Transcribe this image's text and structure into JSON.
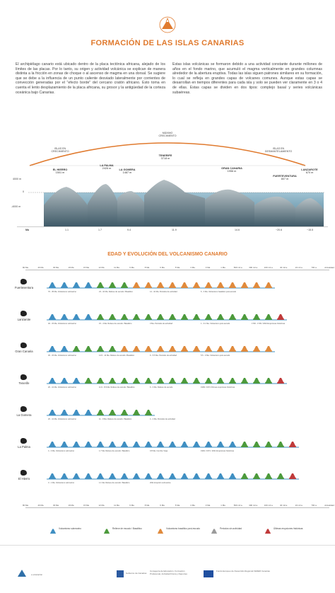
{
  "header": {
    "title": "FORMACIÓN DE LAS ISLAS CANARIAS"
  },
  "intro": {
    "left": "El archipiélago canario está ubicado dentro de la placa tectónica africana, alejado de los límites de las placas. Por lo tanto, su origen y actividad volcánica se explican de manera distinta a la fricción en zonas de choque o al ascenso de magma en una dorsal. Se sugiere que se debe a la influencia de un punto caliente desviado lateralmente por corrientes de convección generadas por el \"efecto borde\" del cercano cratón africano. Esto toma en cuenta el lento desplazamiento de la placa africana, su grosor y la antigüedad de la corteza oceánica bajo Canarias.",
    "right": "Estas islas volcánicas se formaron debido a una actividad constante durante millones de años en el fondo marino, que acumuló el magma verticalmente en grandes columnas alrededor de la abertura eruptiva. Todas las islas siguen patrones similares en su formación, lo cual se refleja en grandes capas de volcanes comunes. Aunque estas capas se desarrollan en tiempos diferentes para cada isla y solo se pueden ver claramente en 3 o 4 de ellas. Estas capas se dividen en dos tipos: complejo basal y series volcánicas subaéreas."
  },
  "arc": {
    "left": "ISLAS EN\nCRECIMIENTO",
    "top": "MÁXIMO\nCRECIMIENTO",
    "right": "ISLAS EN\nDESMANTELAMIENTO"
  },
  "islands": [
    {
      "name": "EL HIERRO",
      "height": "1501 m",
      "ma": "1.1"
    },
    {
      "name": "LA PALMA",
      "height": "2426 m",
      "ma": "1.7"
    },
    {
      "name": "LA GOMERA",
      "height": "1487 m",
      "ma": "9.4"
    },
    {
      "name": "TENERIFE",
      "height": "3718 m",
      "ma": "11.9"
    },
    {
      "name": "GRAN CANARIA",
      "height": "1956 m",
      "ma": "14.6"
    },
    {
      "name": "FUERTEVENTURA",
      "height": "807 m",
      "ma": "~20.6"
    },
    {
      "name": "LANZAROTE",
      "height": "670 m",
      "ma": "~15.5"
    }
  ],
  "section": {
    "axis_top": "4000 m",
    "axis_zero": "0",
    "axis_bottom": "-4000 m",
    "ma_label": "Ma"
  },
  "timeline": {
    "title": "EDAD Y EVOLUCIÓN DEL VOLCANISMO CANARIO",
    "scale": [
      "80 Ma",
      "40 Ma",
      "30 Ma",
      "19 Ma",
      "15 Ma",
      "12 Ma",
      "11 Ma",
      "9 Ma",
      "8 Ma",
      "6 Ma",
      "5 Ma",
      "4 Ma",
      "3 Ma",
      "1 Ma",
      "500 mil a.",
      "300 mil a.",
      "100 mil a.",
      "40 mil a.",
      "10 mil a.",
      "700 a.",
      "Actualidad"
    ],
    "rows": [
      {
        "name": "Fuerteventura",
        "seq": "BBBBGGGAAAAAAAAAAAA",
        "notes": [
          "70 - 35 Ma. Volcanismo submarino",
          "23 - 16 Ma. Relieve de escudo / Basáltico",
          "14 - 10 Ma. Periodos de actividad",
          "6 - 3 Ma. Volcanismo basáltico post-escudo"
        ]
      },
      {
        "name": "Lanzarote",
        "seq": "BBBBGGGGGGGGGGGGGGGR",
        "notes": [
          "40 - 15 Ma. Volcanismo submarino",
          "15 - 4 Ma. Relieve de escudo / Basáltico",
          "3 Ma. Periodos de actividad",
          "1 - 0.1 Ma. Volcanismo post-escudo",
          "1730 - 1736 / 1824 Erupciones históricas"
        ]
      },
      {
        "name": "Gran Canaria",
        "seq": "BBGGGGAAAAAAAAAAAAA",
        "notes": [
          "30 - 15 Ma. Volcanismo submarino",
          "14.5 - 14 Ma. Relieve de escudo / Basáltico",
          "9 - 5.5 Ma. Periodos de actividad",
          "5.5 - 3 Ma. Volcanismo post-escudo"
        ]
      },
      {
        "name": "Tenerife",
        "seq": "BBBGGGGGGGGGGGGGGGGR",
        "notes": [
          "20 - 12 Ma. Volcanismo submarino",
          "11.9 - 8.9 Ma. Relieve de escudo / Basáltico",
          "6 - 3 Ma. Relieve de escudo",
          "1909 / 1971 Últimas erupciones históricas"
        ]
      },
      {
        "name": "La Gomera",
        "seq": "BBBBGGGGG",
        "notes": [
          "20 - 12 Ma. Volcanismo submarino",
          "11 - 9 Ma. Relieve de escudo / Basáltico",
          "4 - 2 Ma. Periodos de actividad"
        ]
      },
      {
        "name": "La Palma",
        "seq": "BBBBBBBBBBBBBBBBGGGGR",
        "notes": [
          "4 - 3 Ma. Volcanismo submarino",
          "1.7 Ma. Relieve de escudo / Basáltico",
          "0.8 Ma. Cumbre Vieja",
          "1949 / 1971 / 2021 Erupciones históricas"
        ]
      },
      {
        "name": "El Hierro",
        "seq": "BBBBBBBBBBBBBBBBGGGGR",
        "notes": [
          "3 - 1 Ma. Volcanismo submarino",
          "1.1 Ma. Relieve de escudo / Basáltico",
          "2011 Erupción submarina"
        ]
      }
    ]
  },
  "legend": [
    "Volcanismo submarino",
    "Relieve de escudo / Basáltico",
    "Volcanismo basáltico post-escudo",
    "Periodos sin actividad",
    "Últimas erupciones históricas"
  ],
  "footer": {
    "left": "e educación",
    "mid1": "Gobierno de Canarias",
    "mid2": "Consejería de Educación, Formación Profesional, Actividad Física y Deportes",
    "right": "Fondo Europeo de Desarrollo Regional FEDER Canarias"
  },
  "colors": {
    "accent": "#e07a2e",
    "submarine": "#3f8fc2",
    "shield": "#4c9a3c",
    "postshield": "#e08a3c",
    "inactive": "#9b9b9b",
    "historic": "#c03a3a"
  }
}
